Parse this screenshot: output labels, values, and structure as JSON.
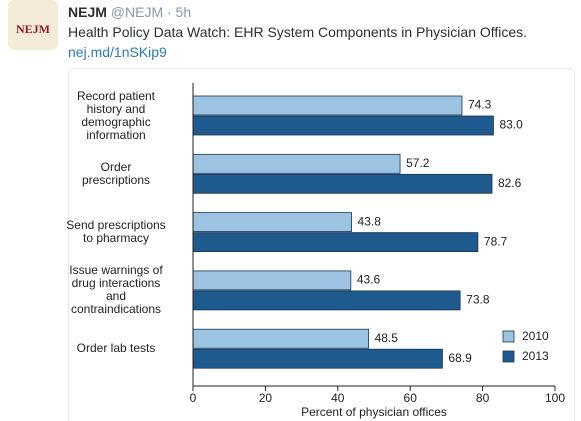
{
  "tweet": {
    "avatar_text": "NEJM",
    "name": "NEJM",
    "handle": "@NEJM · 5h",
    "text": "Health Policy Data Watch: EHR System Components in Physician Offices.",
    "link": "nej.md/1nSKip9"
  },
  "chart_data": {
    "type": "bar",
    "orientation": "horizontal",
    "categories": [
      "Record patient\nhistory and\ndemographic\ninformation",
      "Order\nprescriptions",
      "Send prescriptions\nto pharmacy",
      "Issue warnings of\ndrug interactions\nand\ncontraindications",
      "Order lab tests"
    ],
    "series": [
      {
        "name": "2010",
        "color": "#9cc3e2",
        "values": [
          74.3,
          57.2,
          43.8,
          43.6,
          48.5
        ],
        "value_labels": [
          "74.3",
          "57.2",
          "43.8",
          "43.6",
          "48.5"
        ]
      },
      {
        "name": "2013",
        "color": "#1f5a8e",
        "values": [
          83.0,
          82.6,
          78.7,
          73.8,
          68.9
        ],
        "value_labels": [
          "83.0",
          "82.6",
          "78.7",
          "73.8",
          "68.9"
        ]
      }
    ],
    "xlabel": "Percent of physician offices",
    "xlim": [
      0,
      100
    ],
    "xticks": [
      0,
      20,
      40,
      60,
      80,
      100
    ],
    "legend": "lower right"
  }
}
